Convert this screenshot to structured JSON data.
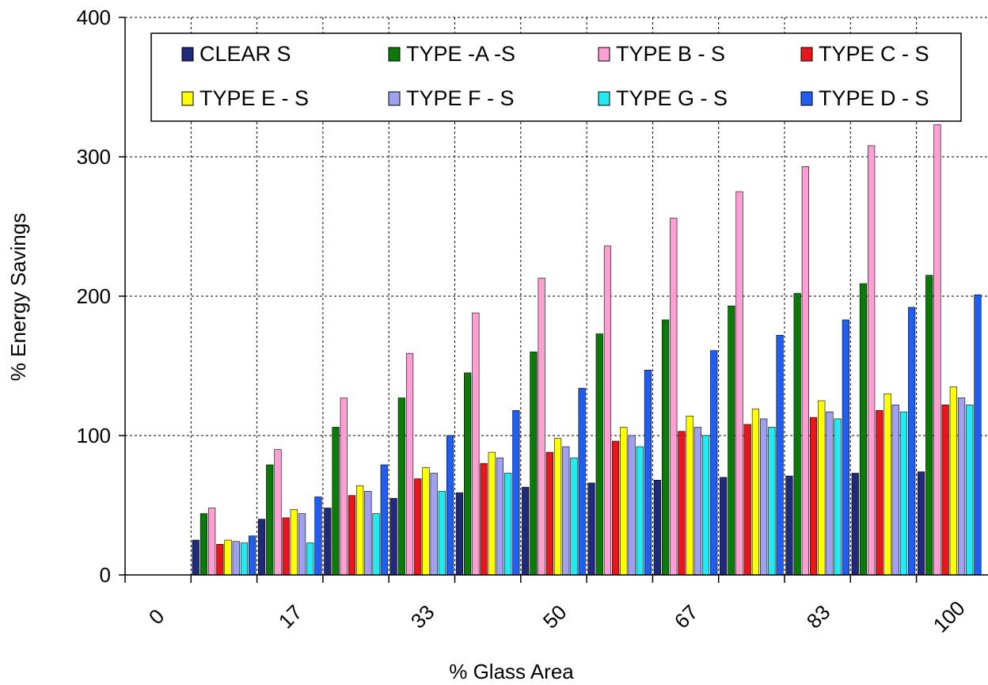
{
  "chart_data": {
    "type": "bar",
    "title": "",
    "xlabel": "% Glass Area",
    "ylabel": "% Energy Savings",
    "ylim": [
      0,
      400
    ],
    "yticks": [
      "0",
      "100",
      "200",
      "300",
      "400"
    ],
    "xticks": [
      "0",
      "17",
      "33",
      "50",
      "67",
      "83",
      "100"
    ],
    "categories": [
      "",
      "",
      "",
      "",
      "",
      "",
      "",
      "",
      "",
      "",
      "",
      ""
    ],
    "grid": true,
    "legend_position": "top",
    "series": [
      {
        "name": "CLEAR S",
        "color": "#1f2a7a",
        "values": [
          25,
          40,
          48,
          55,
          59,
          63,
          66,
          68,
          70,
          71,
          73,
          74
        ]
      },
      {
        "name": "TYPE -A -S",
        "color": "#0a7a0a",
        "values": [
          44,
          79,
          106,
          127,
          145,
          160,
          173,
          183,
          193,
          202,
          209,
          215
        ]
      },
      {
        "name": "TYPE B - S",
        "color": "#ff9ed2",
        "values": [
          48,
          90,
          127,
          159,
          188,
          213,
          236,
          256,
          275,
          293,
          308,
          323
        ]
      },
      {
        "name": "TYPE C - S",
        "color": "#e8161c",
        "values": [
          22,
          41,
          57,
          69,
          80,
          88,
          96,
          103,
          108,
          113,
          118,
          122
        ]
      },
      {
        "name": "TYPE E - S",
        "color": "#ffff00",
        "values": [
          25,
          47,
          64,
          77,
          88,
          98,
          106,
          114,
          119,
          125,
          130,
          135
        ]
      },
      {
        "name": "TYPE F - S",
        "color": "#a0a0f0",
        "values": [
          24,
          44,
          60,
          73,
          84,
          92,
          100,
          106,
          112,
          117,
          122,
          127
        ]
      },
      {
        "name": "TYPE G - S",
        "color": "#22eaf2",
        "values": [
          23,
          23,
          44,
          60,
          73,
          84,
          92,
          100,
          106,
          112,
          117,
          122
        ]
      },
      {
        "name": "TYPE D - S",
        "color": "#1f5ef0",
        "values": [
          28,
          56,
          79,
          100,
          118,
          134,
          147,
          161,
          172,
          183,
          192,
          201
        ]
      }
    ]
  }
}
